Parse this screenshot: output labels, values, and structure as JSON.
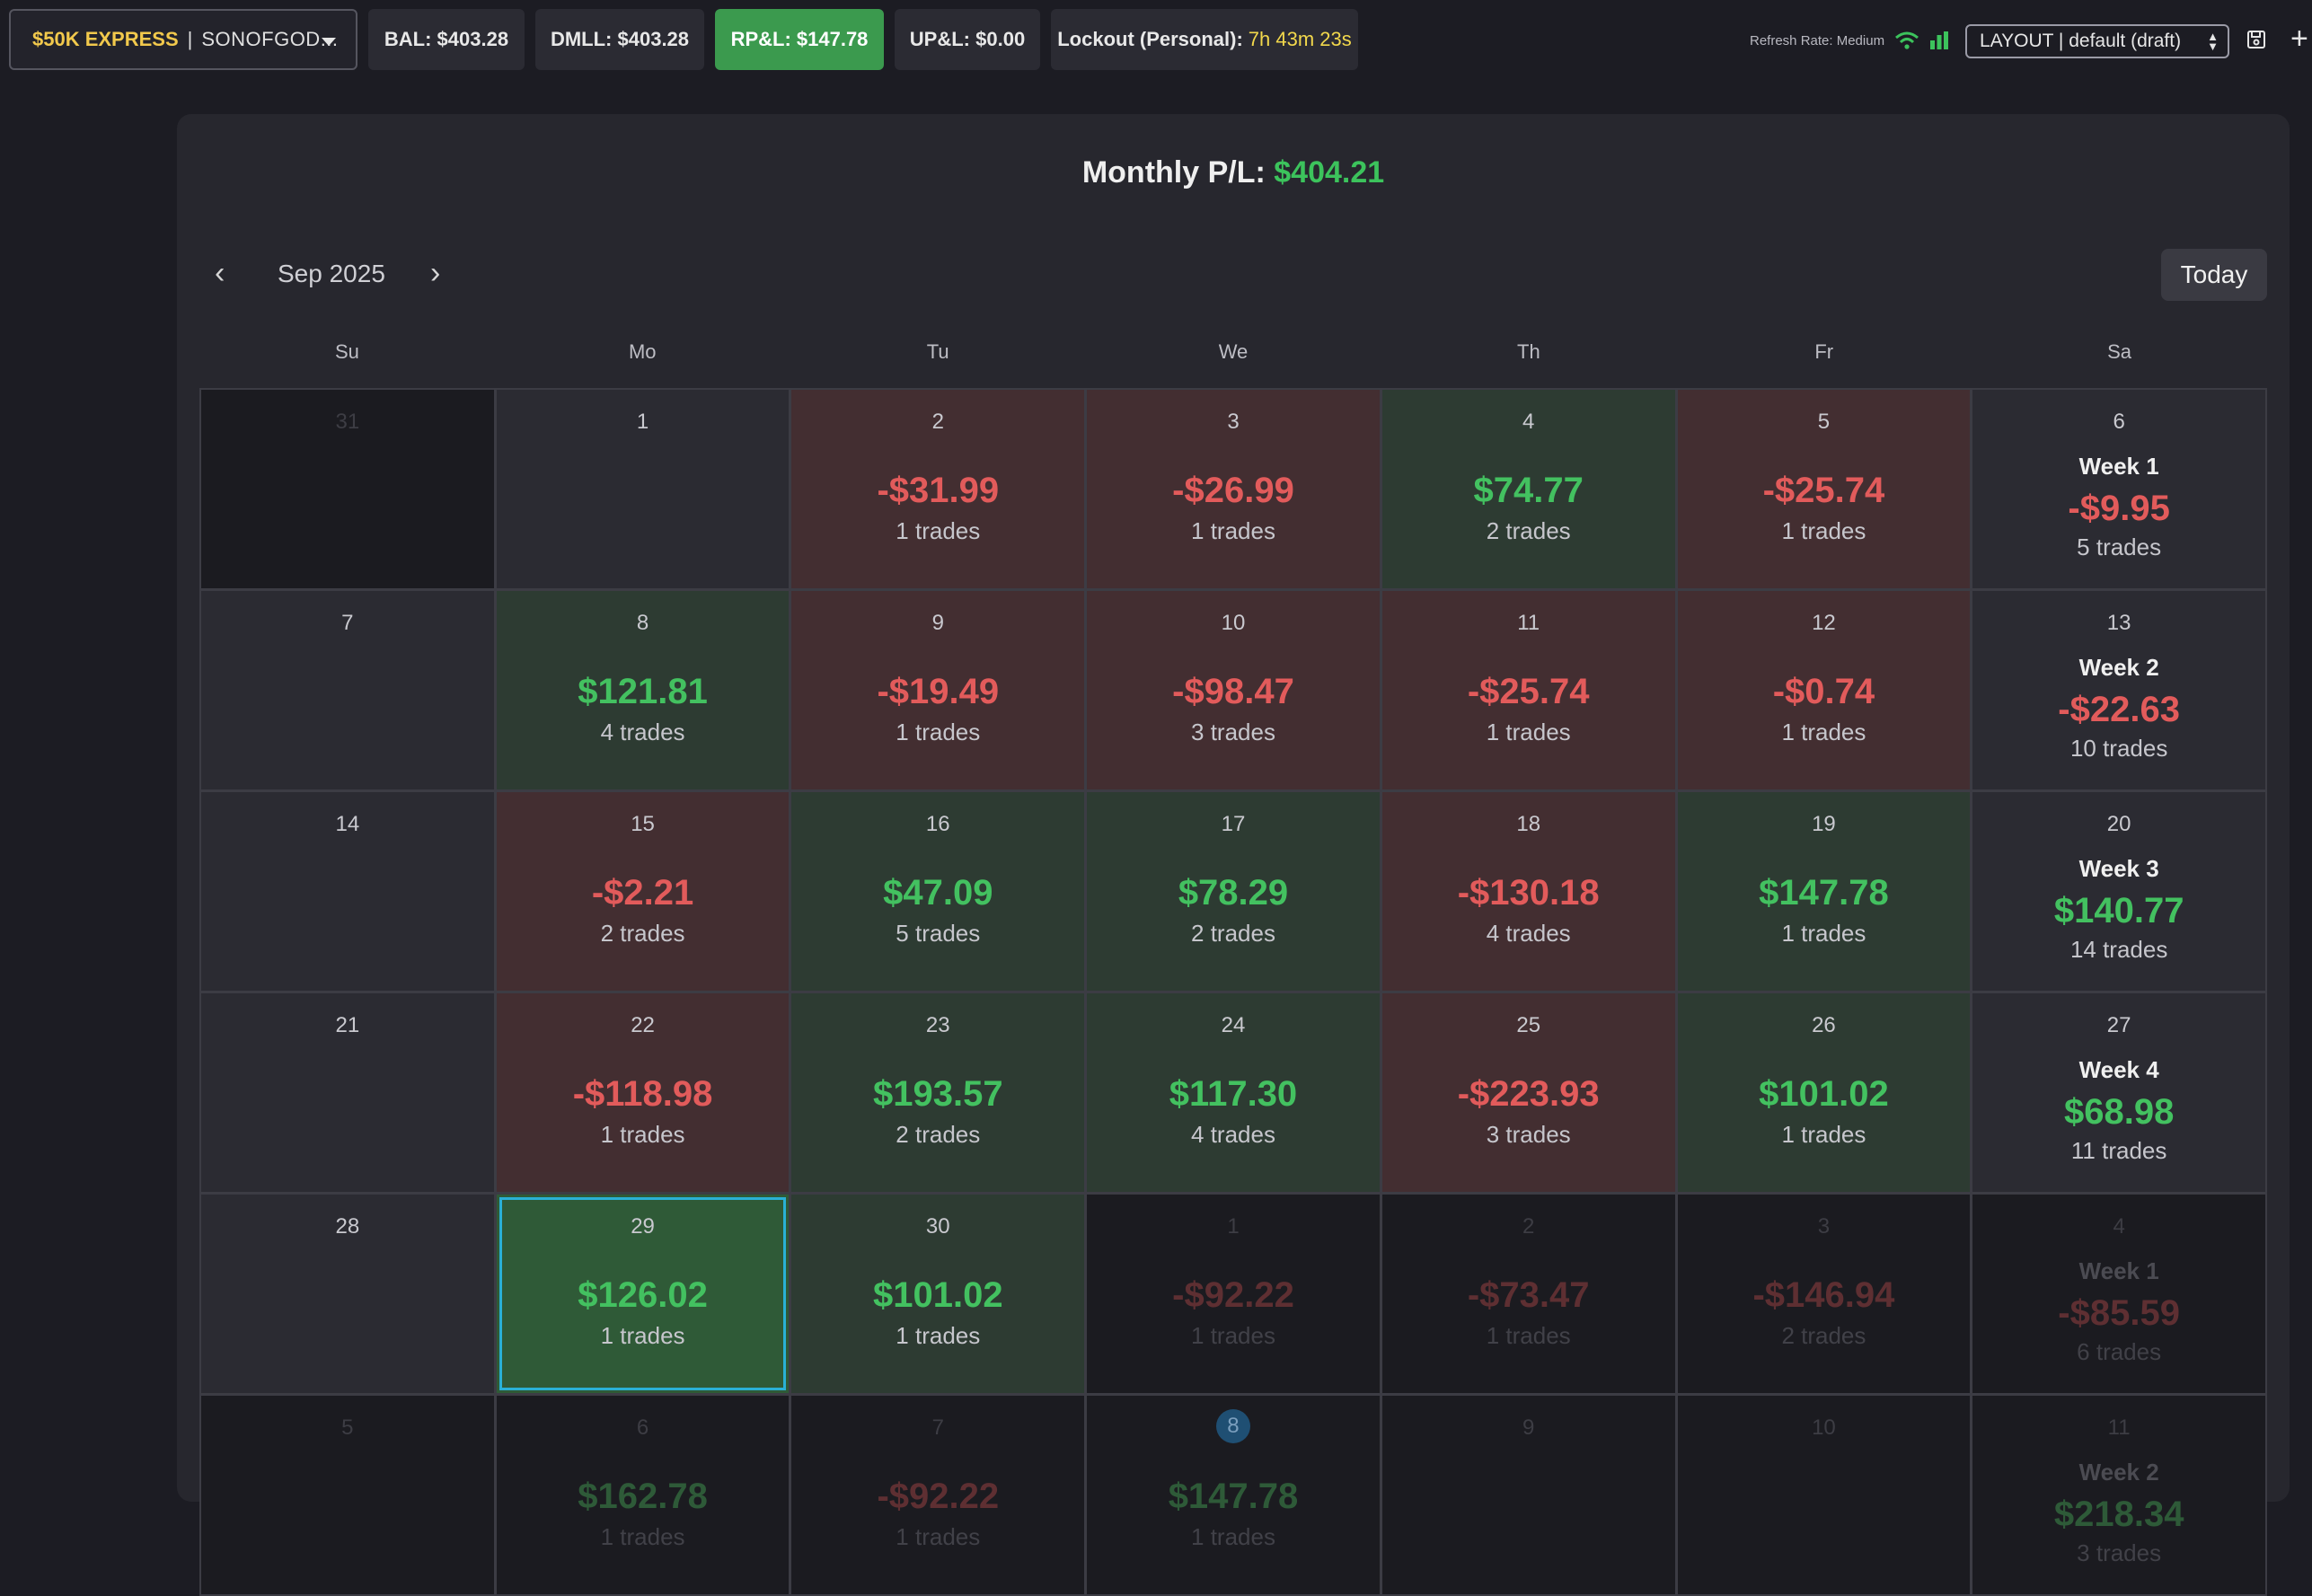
{
  "topbar": {
    "account_type": "$50K EXPRESS",
    "account_sep": "|",
    "account_name": "SONOFGOD...",
    "bal": "BAL: $403.28",
    "dmll": "DMLL: $403.28",
    "rpl": "RP&L: $147.78",
    "upl": "UP&L: $0.00",
    "lockout_label": "Lockout (Personal):",
    "lockout_timer": "7h 43m 23s",
    "refresh_label": "Refresh Rate: Medium",
    "layout_value": "LAYOUT | default (draft)",
    "colors": {
      "positive": "#3b9a4e",
      "timer": "#f2d84c",
      "account": "#f2c94c"
    }
  },
  "calendar": {
    "monthly_label": "Monthly P/L:",
    "monthly_value": "$404.21",
    "month": "Sep 2025",
    "today_label": "Today",
    "weekdays": [
      "Su",
      "Mo",
      "Tu",
      "We",
      "Th",
      "Fr",
      "Sa"
    ],
    "cells": [
      {
        "day": "31",
        "kind": "dark"
      },
      {
        "day": "1",
        "kind": "neutral"
      },
      {
        "day": "2",
        "kind": "neg",
        "pnl": "-$31.99",
        "trades": "1 trades"
      },
      {
        "day": "3",
        "kind": "neg",
        "pnl": "-$26.99",
        "trades": "1 trades"
      },
      {
        "day": "4",
        "kind": "pos",
        "pnl": "$74.77",
        "trades": "2 trades"
      },
      {
        "day": "5",
        "kind": "neg",
        "pnl": "-$25.74",
        "trades": "1 trades"
      },
      {
        "day": "6",
        "kind": "week",
        "sign": "neg",
        "week": "Week 1",
        "pnl": "-$9.95",
        "trades": "5 trades"
      },
      {
        "day": "7",
        "kind": "neutral"
      },
      {
        "day": "8",
        "kind": "pos",
        "pnl": "$121.81",
        "trades": "4 trades"
      },
      {
        "day": "9",
        "kind": "neg",
        "pnl": "-$19.49",
        "trades": "1 trades"
      },
      {
        "day": "10",
        "kind": "neg",
        "pnl": "-$98.47",
        "trades": "3 trades"
      },
      {
        "day": "11",
        "kind": "neg",
        "pnl": "-$25.74",
        "trades": "1 trades"
      },
      {
        "day": "12",
        "kind": "neg",
        "pnl": "-$0.74",
        "trades": "1 trades"
      },
      {
        "day": "13",
        "kind": "week",
        "sign": "neg",
        "week": "Week 2",
        "pnl": "-$22.63",
        "trades": "10 trades"
      },
      {
        "day": "14",
        "kind": "neutral"
      },
      {
        "day": "15",
        "kind": "neg",
        "pnl": "-$2.21",
        "trades": "2 trades"
      },
      {
        "day": "16",
        "kind": "pos",
        "pnl": "$47.09",
        "trades": "5 trades"
      },
      {
        "day": "17",
        "kind": "pos",
        "pnl": "$78.29",
        "trades": "2 trades"
      },
      {
        "day": "18",
        "kind": "neg",
        "pnl": "-$130.18",
        "trades": "4 trades"
      },
      {
        "day": "19",
        "kind": "pos",
        "pnl": "$147.78",
        "trades": "1 trades"
      },
      {
        "day": "20",
        "kind": "week",
        "sign": "pos",
        "week": "Week 3",
        "pnl": "$140.77",
        "trades": "14 trades"
      },
      {
        "day": "21",
        "kind": "neutral"
      },
      {
        "day": "22",
        "kind": "neg",
        "pnl": "-$118.98",
        "trades": "1 trades"
      },
      {
        "day": "23",
        "kind": "pos",
        "pnl": "$193.57",
        "trades": "2 trades"
      },
      {
        "day": "24",
        "kind": "pos",
        "pnl": "$117.30",
        "trades": "4 trades"
      },
      {
        "day": "25",
        "kind": "neg",
        "pnl": "-$223.93",
        "trades": "3 trades"
      },
      {
        "day": "26",
        "kind": "pos",
        "pnl": "$101.02",
        "trades": "1 trades"
      },
      {
        "day": "27",
        "kind": "week",
        "sign": "pos",
        "week": "Week 4",
        "pnl": "$68.98",
        "trades": "11 trades"
      },
      {
        "day": "28",
        "kind": "neutral"
      },
      {
        "day": "29",
        "kind": "selected",
        "pnl": "$126.02",
        "trades": "1 trades"
      },
      {
        "day": "30",
        "kind": "pos",
        "pnl": "$101.02",
        "trades": "1 trades"
      },
      {
        "day": "1",
        "kind": "dim",
        "sign": "neg",
        "pnl": "-$92.22",
        "trades": "1 trades"
      },
      {
        "day": "2",
        "kind": "dim",
        "sign": "neg",
        "pnl": "-$73.47",
        "trades": "1 trades"
      },
      {
        "day": "3",
        "kind": "dim",
        "sign": "neg",
        "pnl": "-$146.94",
        "trades": "2 trades"
      },
      {
        "day": "4",
        "kind": "dimweek",
        "sign": "neg",
        "week": "Week 1",
        "pnl": "-$85.59",
        "trades": "6 trades"
      },
      {
        "day": "5",
        "kind": "dim"
      },
      {
        "day": "6",
        "kind": "dim",
        "sign": "pos",
        "pnl": "$162.78",
        "trades": "1 trades"
      },
      {
        "day": "7",
        "kind": "dim",
        "sign": "neg",
        "pnl": "-$92.22",
        "trades": "1 trades"
      },
      {
        "day": "8",
        "kind": "dim",
        "sign": "pos",
        "badge": true,
        "pnl": "$147.78",
        "trades": "1 trades"
      },
      {
        "day": "9",
        "kind": "dim"
      },
      {
        "day": "10",
        "kind": "dim"
      },
      {
        "day": "11",
        "kind": "dimweek",
        "sign": "pos",
        "week": "Week 2",
        "pnl": "$218.34",
        "trades": "3 trades"
      }
    ]
  }
}
